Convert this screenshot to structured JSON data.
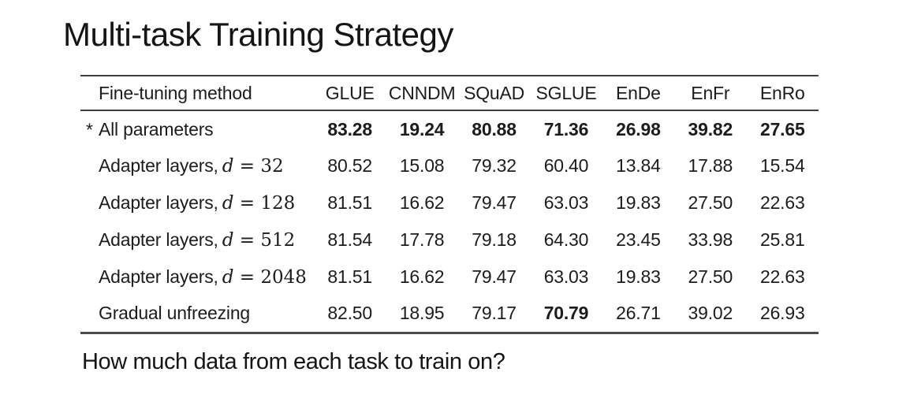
{
  "slide": {
    "title": "Multi-task Training Strategy",
    "question": "How much data from each task to train on?"
  },
  "colors": {
    "background": "#ffffff",
    "text": "#1a1a1a",
    "rule": "#3e3e3e"
  },
  "table": {
    "header": {
      "method": "Fine-tuning method",
      "metrics": [
        "GLUE",
        "CNNDM",
        "SQuAD",
        "SGLUE",
        "EnDe",
        "EnFr",
        "EnRo"
      ]
    },
    "rows": [
      {
        "marker": "*",
        "label": "All parameters",
        "math_var": "",
        "math_eq": "",
        "values": [
          "83.28",
          "19.24",
          "80.88",
          "71.36",
          "26.98",
          "39.82",
          "27.65"
        ],
        "bold_cols": [
          0,
          1,
          2,
          3,
          4,
          5,
          6
        ]
      },
      {
        "marker": "",
        "label": "Adapter layers,",
        "math_var": "d",
        "math_eq": " = 32",
        "values": [
          "80.52",
          "15.08",
          "79.32",
          "60.40",
          "13.84",
          "17.88",
          "15.54"
        ],
        "bold_cols": []
      },
      {
        "marker": "",
        "label": "Adapter layers,",
        "math_var": "d",
        "math_eq": " = 128",
        "values": [
          "81.51",
          "16.62",
          "79.47",
          "63.03",
          "19.83",
          "27.50",
          "22.63"
        ],
        "bold_cols": []
      },
      {
        "marker": "",
        "label": "Adapter layers,",
        "math_var": "d",
        "math_eq": " = 512",
        "values": [
          "81.54",
          "17.78",
          "79.18",
          "64.30",
          "23.45",
          "33.98",
          "25.81"
        ],
        "bold_cols": []
      },
      {
        "marker": "",
        "label": "Adapter layers,",
        "math_var": "d",
        "math_eq": " = 2048",
        "values": [
          "81.51",
          "16.62",
          "79.47",
          "63.03",
          "19.83",
          "27.50",
          "22.63"
        ],
        "bold_cols": []
      },
      {
        "marker": "",
        "label": "Gradual unfreezing",
        "math_var": "",
        "math_eq": "",
        "values": [
          "82.50",
          "18.95",
          "79.17",
          "70.79",
          "26.71",
          "39.02",
          "26.93"
        ],
        "bold_cols": [
          3
        ]
      }
    ]
  }
}
